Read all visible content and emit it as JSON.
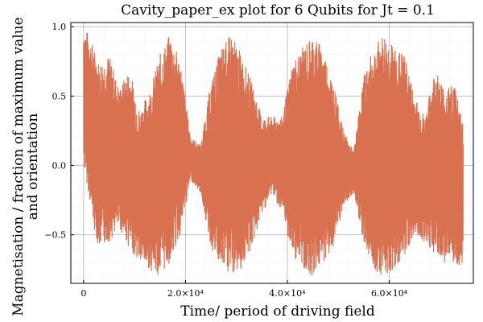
{
  "chart_data": {
    "type": "line",
    "title": "Cavity_paper_ex plot for 6 Qubits for Jt = 0.1",
    "xlabel": "Time/ period of driving field",
    "ylabel_lines": [
      "Magnetisation / fraction of maximum value",
      "and orientation"
    ],
    "xlim": [
      -2500,
      76500
    ],
    "ylim": [
      -0.85,
      1.03
    ],
    "xticks": [
      {
        "value": 0,
        "label": "0"
      },
      {
        "value": 20000,
        "label": "2.0×10⁴"
      },
      {
        "value": 40000,
        "label": "4.0×10⁴"
      },
      {
        "value": 60000,
        "label": "6.0×10⁴"
      }
    ],
    "yticks": [
      {
        "value": -0.5,
        "label": "−0.5"
      },
      {
        "value": 0.0,
        "label": "0.0"
      },
      {
        "value": 0.5,
        "label": "0.5"
      },
      {
        "value": 1.0,
        "label": "1.0"
      }
    ],
    "grid": true,
    "legend": "none",
    "series": [
      {
        "color": "#d9704f",
        "envelope": {
          "x": [
            0,
            1000,
            2000,
            3000,
            5000,
            7000,
            9000,
            11000,
            13000,
            15000,
            17000,
            19000,
            21000,
            23000,
            25000,
            27000,
            29000,
            31000,
            33000,
            35000,
            37000,
            39000,
            41000,
            43000,
            45000,
            47000,
            49000,
            51000,
            53000,
            55000,
            57000,
            59000,
            61000,
            63000,
            65000,
            67000,
            69000,
            71000,
            73000,
            74500
          ],
          "upper": [
            1.0,
            0.95,
            0.85,
            0.75,
            0.8,
            0.55,
            0.7,
            0.4,
            0.55,
            0.8,
            0.95,
            0.75,
            0.2,
            0.15,
            0.6,
            0.85,
            0.95,
            0.8,
            0.6,
            0.35,
            0.35,
            0.35,
            0.75,
            0.85,
            0.95,
            0.85,
            0.6,
            0.25,
            0.1,
            0.65,
            0.85,
            0.95,
            0.85,
            0.8,
            0.5,
            0.35,
            0.7,
            0.55,
            0.6,
            0.3
          ],
          "lower": [
            0.0,
            -0.2,
            -0.45,
            -0.6,
            -0.55,
            -0.45,
            -0.6,
            -0.7,
            -0.75,
            -0.8,
            -0.7,
            -0.5,
            -0.1,
            -0.2,
            -0.6,
            -0.75,
            -0.8,
            -0.75,
            -0.6,
            -0.35,
            -0.2,
            -0.35,
            -0.65,
            -0.75,
            -0.8,
            -0.7,
            -0.6,
            -0.3,
            -0.2,
            -0.55,
            -0.75,
            -0.8,
            -0.75,
            -0.65,
            -0.5,
            -0.55,
            -0.65,
            -0.7,
            -0.75,
            -0.7
          ]
        }
      }
    ]
  }
}
